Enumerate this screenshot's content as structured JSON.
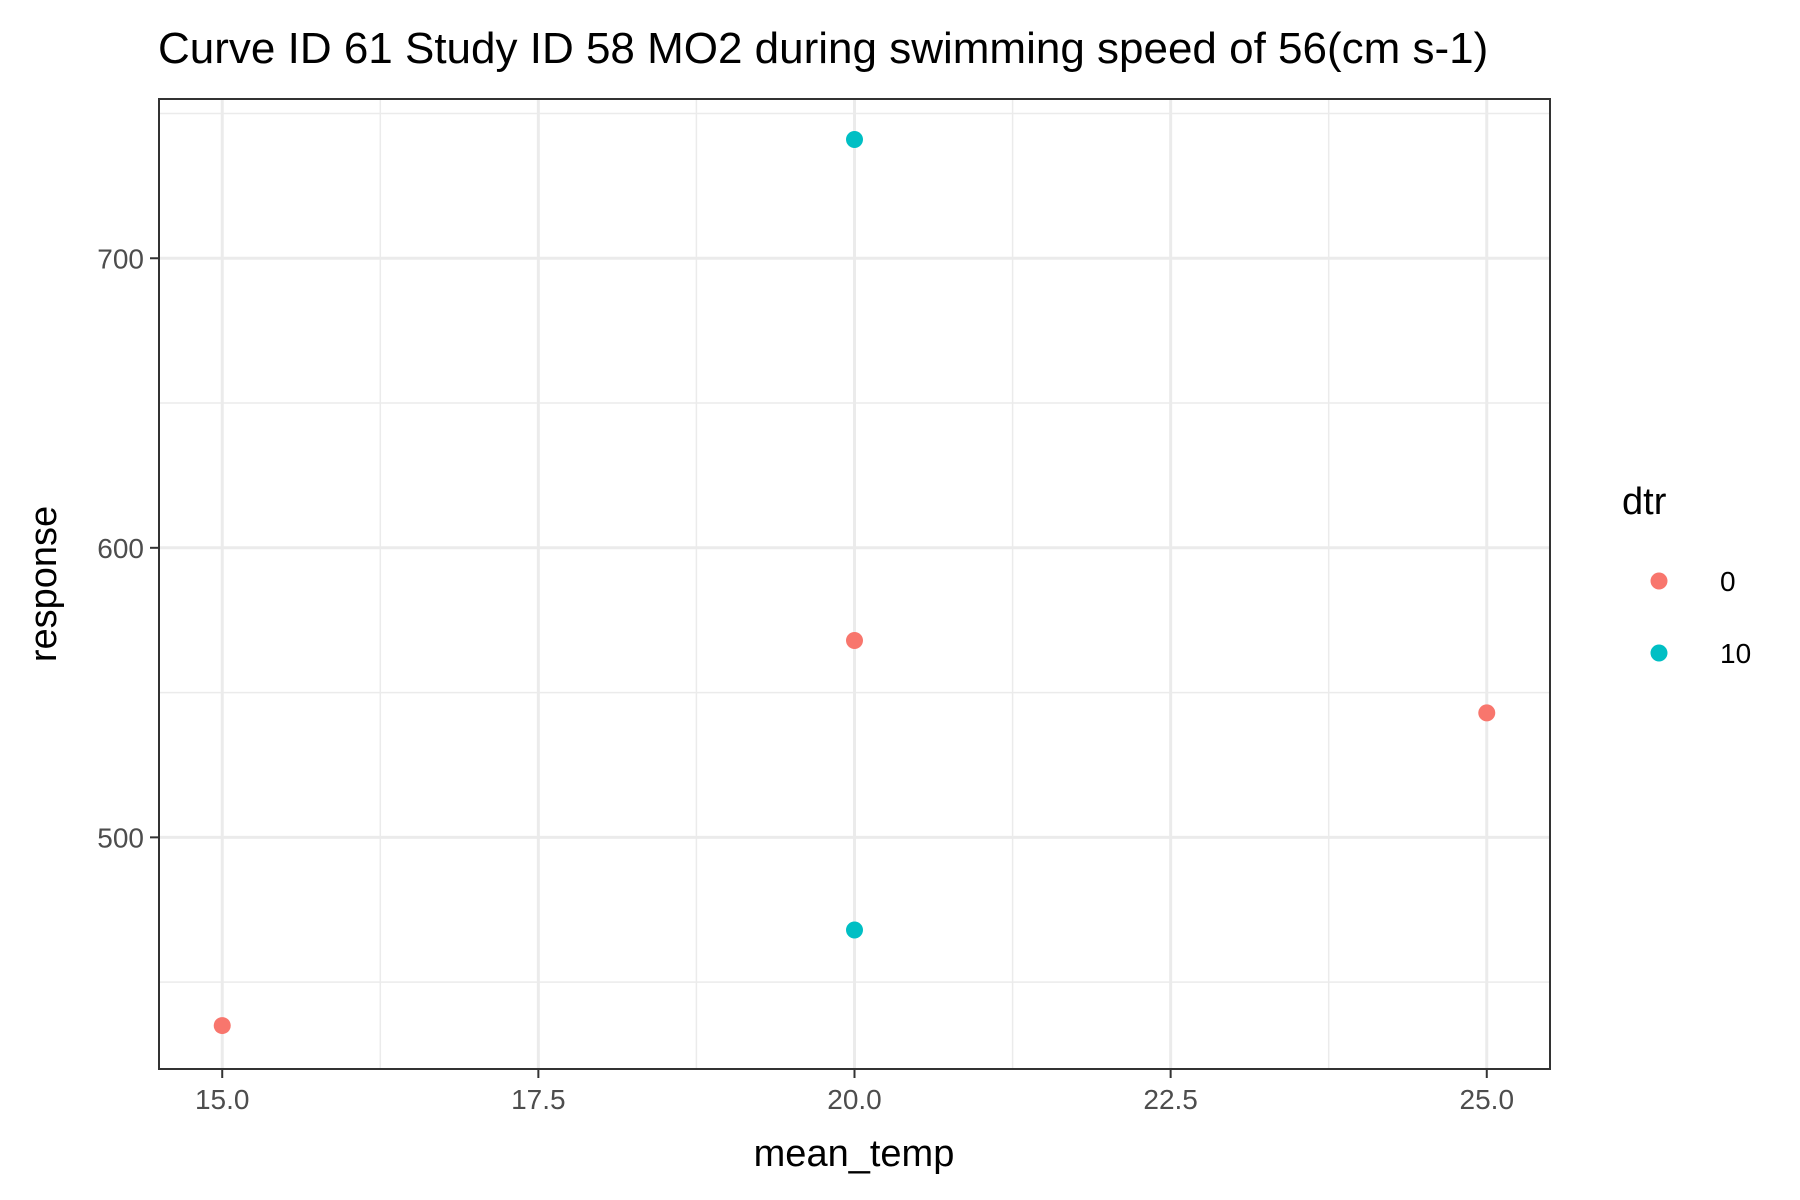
{
  "chart_data": {
    "type": "scatter",
    "title": "Curve ID 61 Study ID 58 MO2 during swimming speed of 56(cm s-1)",
    "xlabel": "mean_temp",
    "ylabel": "response",
    "xlim": [
      14.5,
      25.5
    ],
    "ylim": [
      420,
      755
    ],
    "x_ticks": [
      15.0,
      17.5,
      20.0,
      22.5,
      25.0
    ],
    "x_tick_labels": [
      "15.0",
      "17.5",
      "20.0",
      "22.5",
      "25.0"
    ],
    "y_ticks": [
      500,
      600,
      700
    ],
    "y_tick_labels": [
      "500",
      "600",
      "700"
    ],
    "x_minor_ticks": [
      16.25,
      18.75,
      21.25,
      23.75
    ],
    "y_minor_ticks": [
      450,
      550,
      650,
      750
    ],
    "grid": true,
    "legend": {
      "title": "dtr",
      "position": "right"
    },
    "series": [
      {
        "name": "0",
        "color": "#F8766D",
        "points": [
          {
            "x": 15.0,
            "y": 435
          },
          {
            "x": 20.0,
            "y": 568
          },
          {
            "x": 25.0,
            "y": 543
          }
        ]
      },
      {
        "name": "10",
        "color": "#00BFC4",
        "points": [
          {
            "x": 20.0,
            "y": 741
          },
          {
            "x": 20.0,
            "y": 468
          }
        ]
      }
    ]
  }
}
